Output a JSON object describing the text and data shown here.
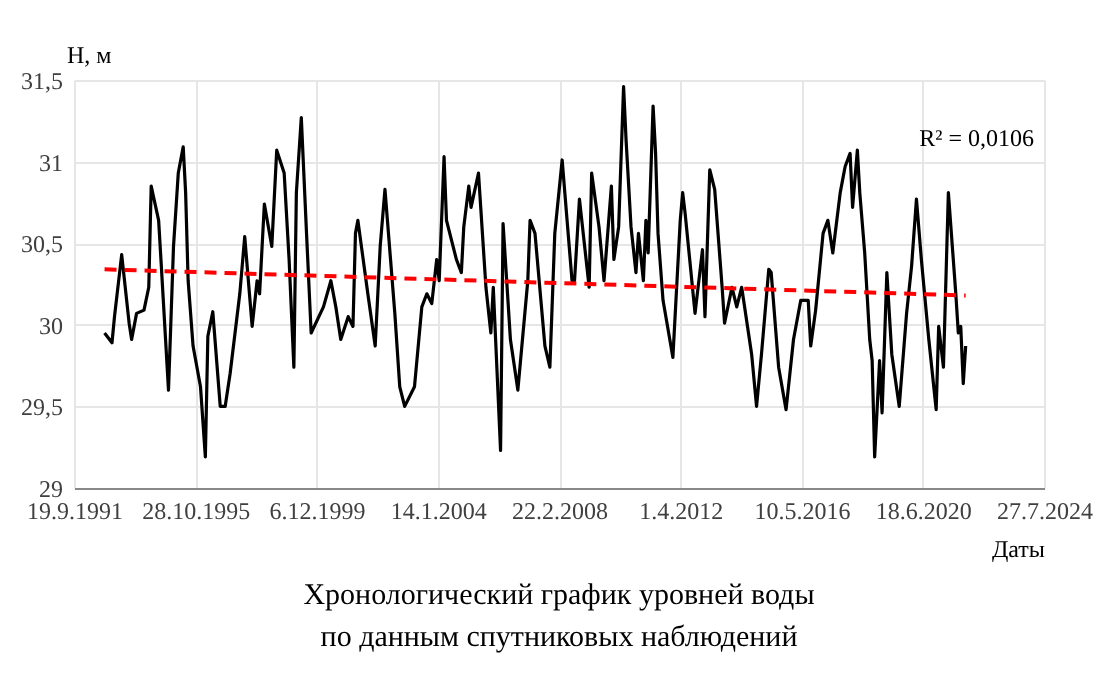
{
  "chart_data": {
    "type": "line",
    "title": "Хронологический график уровней воды",
    "subtitle": "по данным спутниковых наблюдений",
    "xlabel": "Даты",
    "ylabel": "H, м",
    "annotations": [
      "R² = 0,0106"
    ],
    "xlim": [
      "1991-09-19",
      "2024-07-27"
    ],
    "xticks": [
      {
        "value": "1991-09-19",
        "label": "19.9.1991"
      },
      {
        "value": "1995-10-28",
        "label": "28.10.1995"
      },
      {
        "value": "1999-12-06",
        "label": "6.12.1999"
      },
      {
        "value": "2004-01-14",
        "label": "14.1.2004"
      },
      {
        "value": "2008-02-22",
        "label": "22.2.2008"
      },
      {
        "value": "2012-04-01",
        "label": "1.4.2012"
      },
      {
        "value": "2016-05-10",
        "label": "10.5.2016"
      },
      {
        "value": "2020-06-18",
        "label": "18.6.2020"
      },
      {
        "value": "2024-07-27",
        "label": "27.7.2024"
      }
    ],
    "ylim": [
      29,
      31.5
    ],
    "yticks": [
      {
        "value": 29,
        "label": "29"
      },
      {
        "value": 29.5,
        "label": "29,5"
      },
      {
        "value": 30,
        "label": "30"
      },
      {
        "value": 30.5,
        "label": "30,5"
      },
      {
        "value": 31,
        "label": "31"
      },
      {
        "value": 31.5,
        "label": "31,5"
      }
    ],
    "grid": true,
    "series": [
      {
        "color": "#000000",
        "x": [
          "1992-10",
          "1993-01",
          "1993-02",
          "1993-05",
          "1993-08",
          "1993-09",
          "1993-11",
          "1994-02",
          "1994-04",
          "1994-05",
          "1994-08",
          "1994-09",
          "1994-12",
          "1995-02",
          "1995-04",
          "1995-06",
          "1995-07",
          "1995-08",
          "1995-10",
          "1996-01",
          "1996-03",
          "1996-04",
          "1996-06",
          "1996-09",
          "1996-11",
          "1997-01",
          "1997-05",
          "1997-07",
          "1997-10",
          "1997-12",
          "1998-01",
          "1998-03",
          "1998-06",
          "1998-08",
          "1998-11",
          "1999-01",
          "1999-03",
          "1999-04",
          "1999-06",
          "1999-08",
          "1999-10",
          "2000-03",
          "2000-06",
          "2000-08",
          "2000-10",
          "2001-01",
          "2001-03",
          "2001-04",
          "2001-05",
          "2001-09",
          "2001-12",
          "2002-02",
          "2002-04",
          "2002-08",
          "2002-10",
          "2002-12",
          "2003-04",
          "2003-07",
          "2003-09",
          "2003-11",
          "2004-01",
          "2004-02",
          "2004-04",
          "2004-05",
          "2004-09",
          "2004-11",
          "2004-12",
          "2005-02",
          "2005-03",
          "2005-06",
          "2005-09",
          "2005-11",
          "2005-12",
          "2006-03",
          "2006-04",
          "2006-07",
          "2006-10",
          "2007-02",
          "2007-03",
          "2007-05",
          "2007-09",
          "2007-11",
          "2008-01",
          "2008-04",
          "2008-06",
          "2008-08",
          "2008-09",
          "2008-11",
          "2009-03",
          "2009-04",
          "2009-07",
          "2009-09",
          "2009-12",
          "2010-01",
          "2010-03",
          "2010-05",
          "2010-06",
          "2010-08",
          "2010-10",
          "2010-11",
          "2011-01",
          "2011-02",
          "2011-03",
          "2011-05",
          "2011-06",
          "2011-07",
          "2011-09",
          "2012-01",
          "2012-04",
          "2012-05",
          "2012-06",
          "2012-10",
          "2013-01",
          "2013-02",
          "2013-04",
          "2013-06",
          "2013-09",
          "2013-10",
          "2014-01",
          "2014-03",
          "2014-05",
          "2014-09",
          "2014-11",
          "2015-01",
          "2015-04",
          "2015-05",
          "2015-08",
          "2015-11",
          "2016-02",
          "2016-05",
          "2016-08",
          "2016-09",
          "2016-11",
          "2017-02",
          "2017-04",
          "2017-06",
          "2017-09",
          "2017-11",
          "2018-01",
          "2018-02",
          "2018-04",
          "2018-05",
          "2018-07",
          "2018-09",
          "2018-10",
          "2018-11",
          "2019-01",
          "2019-02",
          "2019-04",
          "2019-06",
          "2019-09",
          "2019-12",
          "2020-02",
          "2020-04",
          "2020-06",
          "2020-09",
          "2020-12",
          "2021-01",
          "2021-03",
          "2021-05",
          "2021-08",
          "2021-09",
          "2021-10",
          "2021-11",
          "2021-12"
        ],
        "values": [
          29.95,
          29.89,
          30.05,
          30.43,
          30.01,
          29.91,
          30.07,
          30.09,
          30.23,
          30.85,
          30.64,
          30.38,
          29.6,
          30.48,
          30.93,
          31.09,
          30.81,
          30.27,
          29.87,
          29.62,
          29.19,
          29.93,
          30.08,
          29.5,
          29.5,
          29.7,
          30.19,
          30.54,
          29.99,
          30.27,
          30.19,
          30.74,
          30.48,
          31.07,
          30.93,
          30.4,
          29.74,
          30.81,
          31.27,
          30.6,
          29.95,
          30.11,
          30.27,
          30.11,
          29.91,
          30.05,
          29.99,
          30.56,
          30.64,
          30.19,
          29.87,
          30.48,
          30.83,
          30.07,
          29.62,
          29.5,
          29.62,
          30.11,
          30.19,
          30.13,
          30.4,
          30.27,
          31.03,
          30.64,
          30.4,
          30.32,
          30.6,
          30.85,
          30.72,
          30.93,
          30.23,
          29.95,
          30.23,
          29.23,
          30.62,
          29.91,
          29.6,
          30.27,
          30.64,
          30.56,
          29.87,
          29.74,
          30.56,
          31.01,
          30.64,
          30.27,
          30.27,
          30.77,
          30.23,
          30.93,
          30.6,
          30.27,
          30.85,
          30.4,
          30.6,
          31.46,
          31.13,
          30.6,
          30.32,
          30.56,
          30.27,
          30.64,
          30.44,
          31.34,
          31.05,
          30.56,
          30.15,
          29.8,
          30.64,
          30.81,
          30.68,
          30.07,
          30.46,
          30.05,
          30.95,
          30.83,
          30.23,
          30.01,
          30.23,
          30.11,
          30.23,
          29.82,
          29.5,
          29.82,
          30.34,
          30.32,
          29.74,
          29.48,
          29.91,
          30.15,
          30.15,
          29.87,
          30.09,
          30.56,
          30.64,
          30.44,
          30.81,
          30.97,
          31.05,
          30.72,
          31.07,
          30.81,
          30.44,
          29.91,
          29.78,
          29.19,
          29.78,
          29.46,
          30.32,
          29.82,
          29.5,
          30.07,
          30.36,
          30.77,
          30.4,
          29.91,
          29.48,
          29.99,
          29.74,
          30.81,
          30.19,
          29.95,
          29.99,
          29.64,
          29.87
        ]
      },
      {
        "type": "line",
        "color": "#ff0000",
        "line_style": "dashed",
        "x": [
          "1992-10",
          "2021-12"
        ],
        "values": [
          30.34,
          30.18
        ]
      }
    ]
  }
}
